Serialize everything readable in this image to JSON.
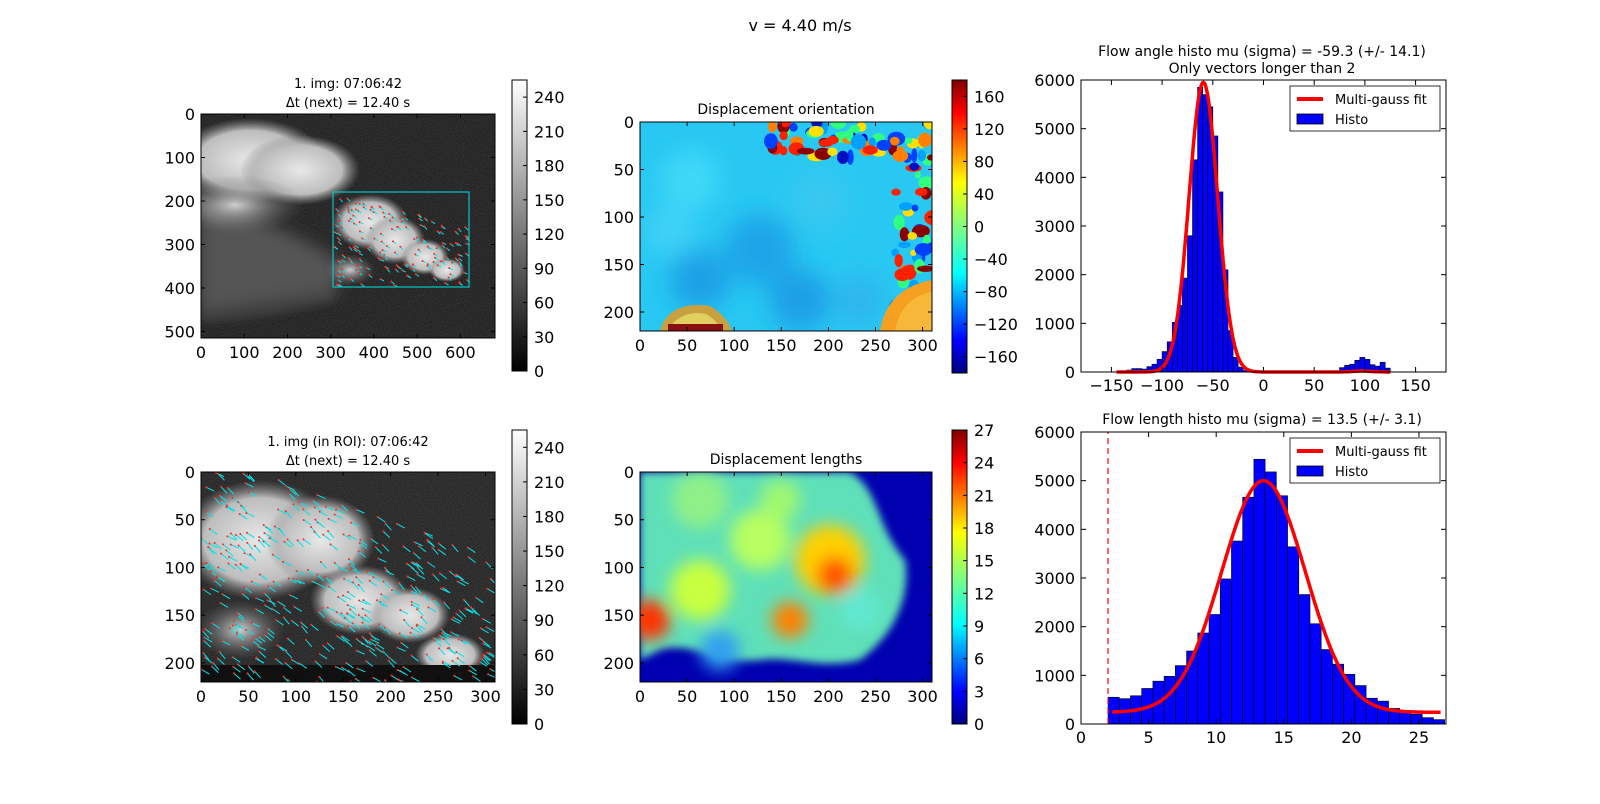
{
  "suptitle": "v = 4.40 m/s",
  "colors": {
    "cyan": "#00e5e5",
    "red_vec": "#ff2a2a",
    "hist_fill": "#0000ff",
    "fit_line": "#ff0000"
  },
  "icons": [
    "jet-colormap",
    "gray-colormap"
  ],
  "chart_data": [
    {
      "type": "heatmap",
      "name": "img1",
      "title_lines": [
        "1. img: 07:06:42",
        "Δt (next) = 12.40 s"
      ],
      "x_ticks": [
        "0",
        "100",
        "200",
        "300",
        "400",
        "500",
        "600"
      ],
      "y_ticks": [
        "0",
        "100",
        "200",
        "300",
        "400",
        "500"
      ],
      "xlim": [
        0,
        680
      ],
      "ylim": [
        515,
        0
      ],
      "roi_rect": {
        "x0": 310,
        "y0": 180,
        "x1": 620,
        "y1": 395
      },
      "colorbar": {
        "cmap": "gray",
        "ticks": [
          "0",
          "30",
          "60",
          "90",
          "120",
          "150",
          "180",
          "210",
          "240"
        ],
        "range": [
          0,
          255
        ]
      }
    },
    {
      "type": "heatmap",
      "name": "orientation",
      "title": "Displacement orientation",
      "x_ticks": [
        "0",
        "50",
        "100",
        "150",
        "200",
        "250",
        "300"
      ],
      "y_ticks": [
        "0",
        "50",
        "100",
        "150",
        "200"
      ],
      "xlim": [
        0,
        310
      ],
      "ylim": [
        220,
        0
      ],
      "colorbar": {
        "cmap": "jet",
        "ticks": [
          "−160",
          "−120",
          "−80",
          "−40",
          "0",
          "40",
          "80",
          "120",
          "160"
        ],
        "range": [
          -180,
          180
        ]
      }
    },
    {
      "type": "bar",
      "name": "angle_hist",
      "title_lines": [
        "Flow angle histo mu (sigma) = -59.3 (+/- 14.1)",
        "Only vectors longer than 2"
      ],
      "x_ticks": [
        "−150",
        "−100",
        "−50",
        "0",
        "50",
        "100",
        "150"
      ],
      "x_tick_values": [
        -150,
        -100,
        -50,
        0,
        50,
        100,
        150
      ],
      "y_ticks": [
        "0",
        "1000",
        "2000",
        "3000",
        "4000",
        "5000",
        "6000"
      ],
      "xlim": [
        -180,
        180
      ],
      "ylim": [
        0,
        6000
      ],
      "bin_width": 5,
      "bins_x": [
        -140,
        -135,
        -130,
        -125,
        -120,
        -115,
        -110,
        -105,
        -100,
        -95,
        -90,
        -85,
        -80,
        -75,
        -70,
        -65,
        -60,
        -55,
        -50,
        -45,
        -40,
        -35,
        -30,
        -25,
        -20,
        75,
        80,
        85,
        90,
        95,
        100,
        105,
        110,
        115,
        120
      ],
      "counts": [
        20,
        40,
        70,
        70,
        60,
        110,
        160,
        260,
        420,
        620,
        1020,
        1370,
        1930,
        2800,
        4360,
        5850,
        5700,
        5450,
        4850,
        3700,
        2100,
        850,
        300,
        100,
        30,
        90,
        140,
        160,
        240,
        300,
        260,
        150,
        120,
        200,
        80
      ],
      "fit": {
        "mu": -59.3,
        "sigma": 14.1,
        "amp": 5950,
        "mu2": 97,
        "sigma2": 9,
        "amp2": 20
      },
      "legend": [
        "Multi-gauss fit",
        "Histo"
      ]
    },
    {
      "type": "heatmap",
      "name": "img_roi",
      "title_lines": [
        "1. img (in ROI): 07:06:42",
        "Δt (next) = 12.40 s"
      ],
      "x_ticks": [
        "0",
        "50",
        "100",
        "150",
        "200",
        "250",
        "300"
      ],
      "y_ticks": [
        "0",
        "50",
        "100",
        "150",
        "200"
      ],
      "xlim": [
        0,
        310
      ],
      "ylim": [
        220,
        0
      ],
      "colorbar": {
        "cmap": "gray",
        "ticks": [
          "0",
          "30",
          "60",
          "90",
          "120",
          "150",
          "180",
          "210",
          "240"
        ],
        "range": [
          0,
          255
        ]
      }
    },
    {
      "type": "heatmap",
      "name": "lengths",
      "title": "Displacement lengths",
      "x_ticks": [
        "0",
        "50",
        "100",
        "150",
        "200",
        "250",
        "300"
      ],
      "y_ticks": [
        "0",
        "50",
        "100",
        "150",
        "200"
      ],
      "xlim": [
        0,
        310
      ],
      "ylim": [
        220,
        0
      ],
      "colorbar": {
        "cmap": "jet",
        "ticks": [
          "0",
          "3",
          "6",
          "9",
          "12",
          "15",
          "18",
          "21",
          "24",
          "27"
        ],
        "range": [
          0,
          27
        ]
      }
    },
    {
      "type": "bar",
      "name": "length_hist",
      "title": "Flow length histo mu (sigma) = 13.5 (+/- 3.1)",
      "x_ticks": [
        "0",
        "5",
        "10",
        "15",
        "20",
        "25"
      ],
      "x_tick_values": [
        0,
        5,
        10,
        15,
        20,
        25
      ],
      "y_ticks": [
        "0",
        "1000",
        "2000",
        "3000",
        "4000",
        "5000",
        "6000"
      ],
      "xlim": [
        0,
        27
      ],
      "ylim": [
        0,
        6000
      ],
      "bin_width": 0.83,
      "bins_x": [
        2.0,
        2.83,
        3.66,
        4.49,
        5.32,
        6.15,
        6.98,
        7.81,
        8.64,
        9.47,
        10.3,
        11.13,
        11.96,
        12.79,
        13.62,
        14.45,
        15.28,
        16.11,
        16.94,
        17.77,
        18.6,
        19.43,
        20.26,
        21.09,
        21.92,
        22.75,
        23.58,
        24.41,
        25.24,
        26.07
      ],
      "counts": [
        550,
        520,
        580,
        730,
        880,
        980,
        1200,
        1500,
        1870,
        2250,
        2980,
        3760,
        4660,
        5440,
        5180,
        4690,
        3640,
        2660,
        2060,
        1530,
        1230,
        1020,
        790,
        530,
        470,
        320,
        250,
        200,
        130,
        90
      ],
      "threshold": 2,
      "fit": {
        "mu": 13.5,
        "sigma": 3.1,
        "amp": 5000,
        "offset": 240
      },
      "legend": [
        "Multi-gauss fit",
        "Histo"
      ]
    }
  ]
}
